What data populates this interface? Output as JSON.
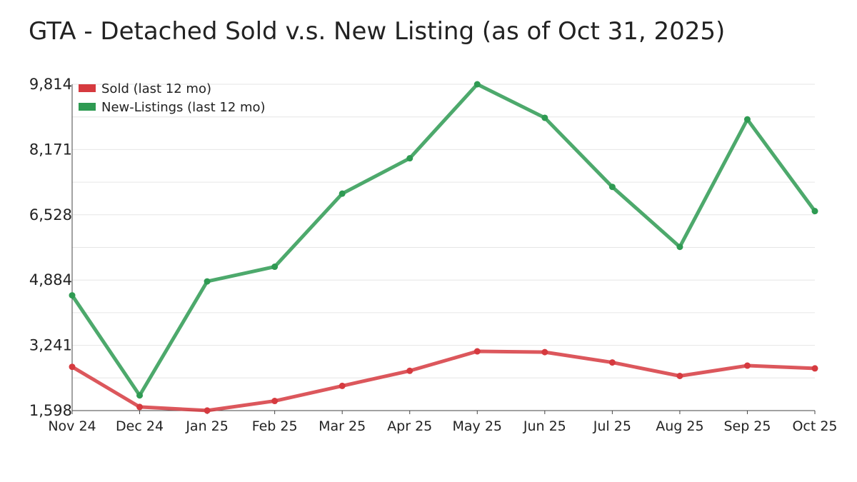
{
  "chart_data": {
    "type": "line",
    "title": "GTA - Detached Sold v.s. New Listing (as of Oct 31, 2025)",
    "xlabel": "",
    "ylabel": "",
    "categories": [
      "Nov 24",
      "Dec 24",
      "Jan 25",
      "Feb 25",
      "Mar 25",
      "Apr 25",
      "May 25",
      "Jun 25",
      "Jul 25",
      "Aug 25",
      "Sep 25",
      "Oct 25"
    ],
    "ylim": [
      1598,
      9814
    ],
    "yticks": [
      "1,598",
      "3,241",
      "4,884",
      "6,528",
      "8,171",
      "9,814"
    ],
    "ytick_values": [
      1598,
      3241,
      4884,
      6528,
      8171,
      9814
    ],
    "grid": true,
    "legend_position": "top-left",
    "series": [
      {
        "name": "Sold (last 12 mo)",
        "color": "#d63a3f",
        "values": [
          2700,
          1690,
          1600,
          1840,
          2220,
          2600,
          3090,
          3070,
          2810,
          2470,
          2730,
          2660
        ]
      },
      {
        "name": "New-Listings (last 12 mo)",
        "color": "#2e9a52",
        "values": [
          4500,
          1980,
          4850,
          5220,
          7060,
          7950,
          9814,
          8970,
          7230,
          5720,
          8930,
          6620
        ]
      }
    ]
  }
}
